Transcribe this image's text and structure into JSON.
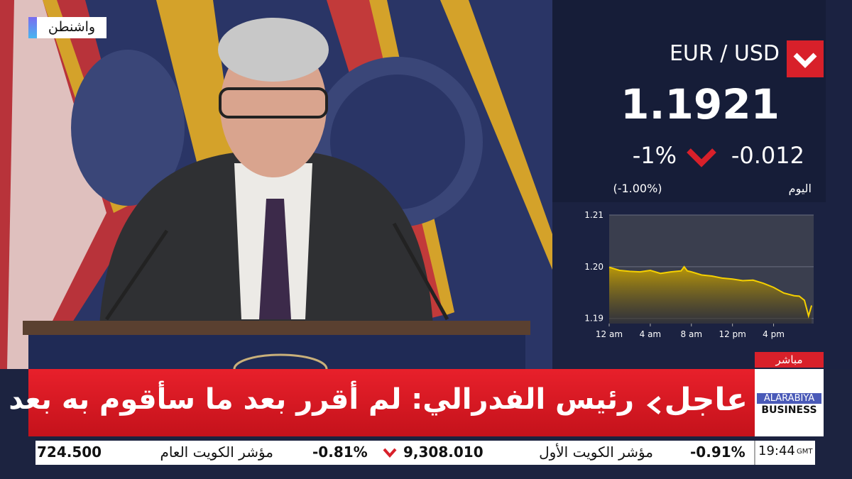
{
  "location": "واشنطن",
  "quote": {
    "pair": "EUR / USD",
    "price": "1.1921",
    "change_pct": "-1%",
    "change": "-0.012",
    "pct_label": "(-1.00%)",
    "period": "اليوم"
  },
  "chart_data": {
    "type": "line",
    "x": [
      0,
      1,
      2,
      3,
      4,
      5,
      6,
      7,
      7.3,
      7.6,
      8,
      9,
      10,
      11,
      12,
      13,
      14,
      15,
      16,
      17,
      18,
      18.5,
      19,
      19.4,
      19.7
    ],
    "series": [
      {
        "color": "#f5d000",
        "values": [
          1.1999,
          1.1993,
          1.1991,
          1.199,
          1.1993,
          1.1987,
          1.199,
          1.1992,
          1.2,
          1.1992,
          1.199,
          1.1984,
          1.1982,
          1.1978,
          1.1976,
          1.1973,
          1.1974,
          1.1968,
          1.196,
          1.1949,
          1.1944,
          1.1943,
          1.1935,
          1.1905,
          1.1925
        ]
      }
    ],
    "xlim": [
      0,
      19.9
    ],
    "ylim": [
      1.189,
      1.21
    ],
    "yticks": [
      {
        "value": 1.21,
        "label": "1.21"
      },
      {
        "value": 1.2,
        "label": "1.20"
      },
      {
        "value": 1.19,
        "label": "1.19"
      }
    ],
    "xticks": [
      {
        "value": 0,
        "label": "12 am"
      },
      {
        "value": 4,
        "label": "4 am"
      },
      {
        "value": 8,
        "label": "8 am"
      },
      {
        "value": 12,
        "label": "12 pm"
      },
      {
        "value": 16,
        "label": "4 pm"
      }
    ],
    "grid": true
  },
  "live": "مباشر",
  "breaking": {
    "tag": "عاجل",
    "headline": "رئيس الفدرالي: لم أقرر بعد ما سأقوم به بعد نهاية ولايتي"
  },
  "logo": {
    "line1": "ALARABIYA",
    "line2": "BUSINESS"
  },
  "ticker": {
    "items": [
      {
        "value": "724.500",
        "name": "مؤشر الكويت العام"
      },
      {
        "change": "-0.81%",
        "value": "9,308.010",
        "name": "مؤشر الكويت الأول"
      },
      {
        "change": "-0.91%"
      }
    ],
    "time": "19:44",
    "zone": "GMT"
  }
}
